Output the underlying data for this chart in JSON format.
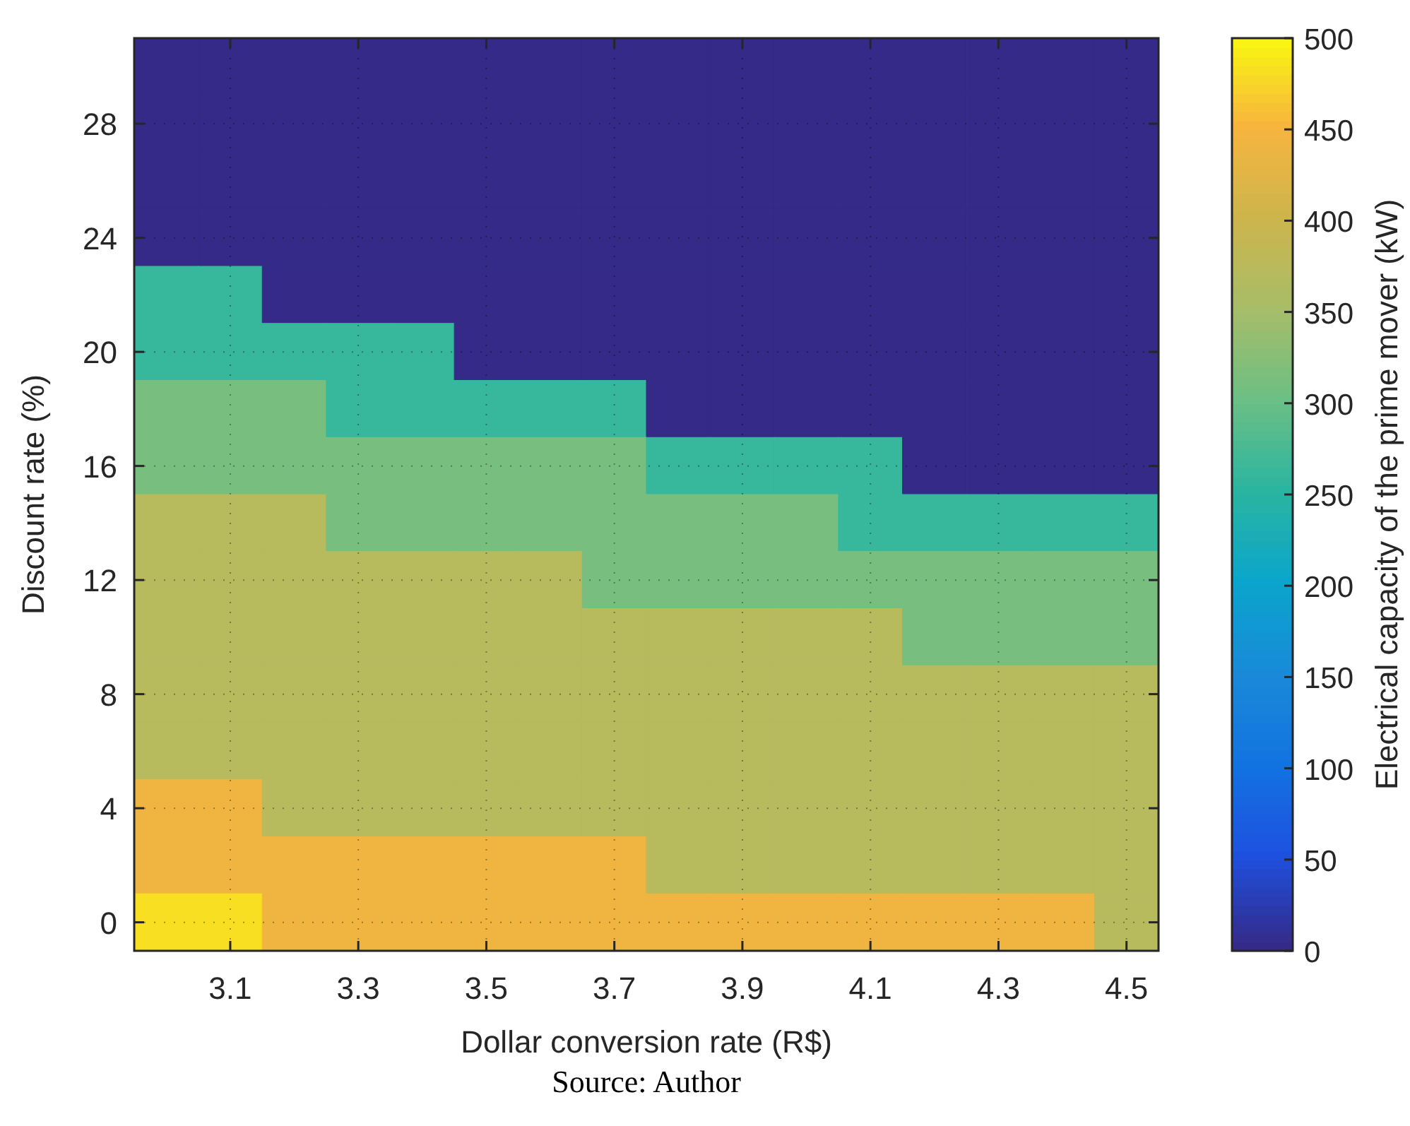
{
  "chart_data": {
    "type": "heatmap",
    "xlabel": "Dollar conversion rate (R$)",
    "ylabel": "Discount rate (%)",
    "clabel": "Electrical capacity of the prime mover (kW)",
    "x": [
      3.0,
      3.1,
      3.2,
      3.3,
      3.4,
      3.5,
      3.6,
      3.7,
      3.8,
      3.9,
      4.0,
      4.1,
      4.2,
      4.3,
      4.4,
      4.5
    ],
    "y": [
      30,
      28,
      26,
      24,
      22,
      20,
      18,
      16,
      14,
      12,
      10,
      8,
      6,
      4,
      2,
      0
    ],
    "xlim": [
      2.95,
      4.55
    ],
    "ylim": [
      -1,
      31
    ],
    "xticks": [
      3.1,
      3.3,
      3.5,
      3.7,
      3.9,
      4.1,
      4.3,
      4.5
    ],
    "yticks": [
      0,
      4,
      8,
      12,
      16,
      20,
      24,
      28
    ],
    "clim": [
      0,
      500
    ],
    "cticks": [
      0,
      50,
      100,
      150,
      200,
      250,
      300,
      350,
      400,
      450,
      500
    ],
    "grid": true,
    "cells": [
      [
        0,
        0,
        0,
        0,
        0,
        0,
        0,
        0,
        0,
        0,
        0,
        0,
        0,
        0,
        0,
        0
      ],
      [
        0,
        0,
        0,
        0,
        0,
        0,
        0,
        0,
        0,
        0,
        0,
        0,
        0,
        0,
        0,
        0
      ],
      [
        0,
        0,
        0,
        0,
        0,
        0,
        0,
        0,
        0,
        0,
        0,
        0,
        0,
        0,
        0,
        0
      ],
      [
        0,
        0,
        0,
        0,
        0,
        0,
        0,
        0,
        0,
        0,
        0,
        0,
        0,
        0,
        0,
        0
      ],
      [
        260,
        260,
        0,
        0,
        0,
        0,
        0,
        0,
        0,
        0,
        0,
        0,
        0,
        0,
        0,
        0
      ],
      [
        260,
        260,
        260,
        260,
        260,
        0,
        0,
        0,
        0,
        0,
        0,
        0,
        0,
        0,
        0,
        0
      ],
      [
        310,
        310,
        310,
        260,
        260,
        260,
        260,
        260,
        0,
        0,
        0,
        0,
        0,
        0,
        0,
        0
      ],
      [
        310,
        310,
        310,
        310,
        310,
        310,
        310,
        310,
        260,
        260,
        260,
        260,
        0,
        0,
        0,
        0
      ],
      [
        370,
        370,
        370,
        310,
        310,
        310,
        310,
        310,
        310,
        310,
        310,
        260,
        260,
        260,
        260,
        260
      ],
      [
        370,
        370,
        370,
        370,
        370,
        370,
        370,
        310,
        310,
        310,
        310,
        310,
        310,
        310,
        310,
        310
      ],
      [
        370,
        370,
        370,
        370,
        370,
        370,
        370,
        370,
        370,
        370,
        370,
        370,
        310,
        310,
        310,
        310
      ],
      [
        370,
        370,
        370,
        370,
        370,
        370,
        370,
        370,
        370,
        370,
        370,
        370,
        370,
        370,
        370,
        370
      ],
      [
        370,
        370,
        370,
        370,
        370,
        370,
        370,
        370,
        370,
        370,
        370,
        370,
        370,
        370,
        370,
        370
      ],
      [
        440,
        440,
        370,
        370,
        370,
        370,
        370,
        370,
        370,
        370,
        370,
        370,
        370,
        370,
        370,
        370
      ],
      [
        440,
        440,
        440,
        440,
        440,
        440,
        440,
        440,
        370,
        370,
        370,
        370,
        370,
        370,
        370,
        370
      ],
      [
        480,
        480,
        440,
        440,
        440,
        440,
        440,
        440,
        440,
        440,
        440,
        440,
        440,
        440,
        440,
        370
      ]
    ],
    "annotations": [
      "Source: Author"
    ]
  }
}
